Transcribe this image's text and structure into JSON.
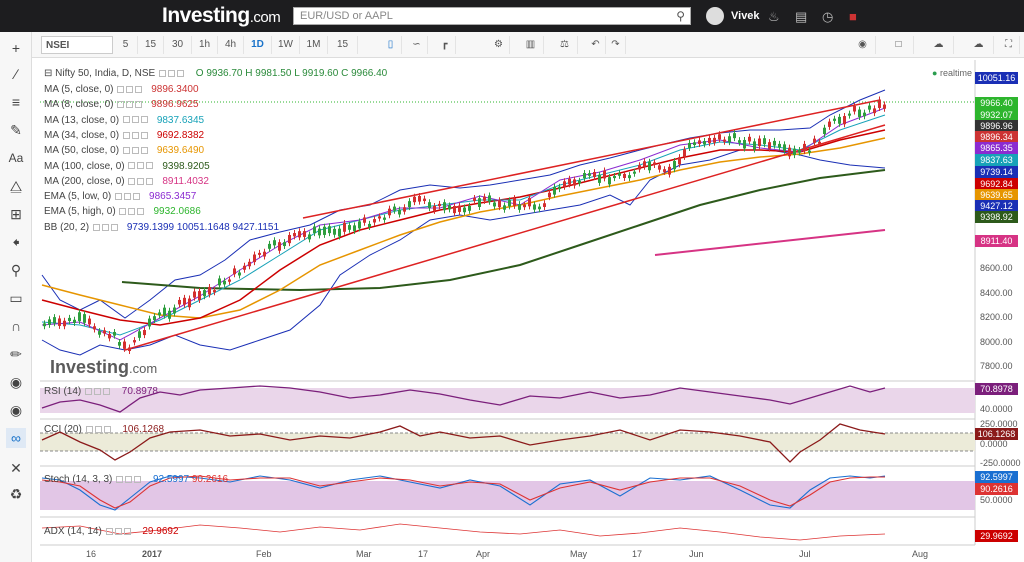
{
  "header": {
    "logo": "Investing",
    "logo_suffix": ".com",
    "search_placeholder": "EUR/USD or AAPL",
    "user_name": "Vivek"
  },
  "toolbar": {
    "symbol": "NSEI",
    "intervals": [
      "5",
      "15",
      "30",
      "1h",
      "4h",
      "1D",
      "1W",
      "1M",
      "15"
    ],
    "active_interval": "1D"
  },
  "legend": {
    "main": "Nifty 50, India, D, NSE",
    "ohlc": "O 9936.70  H 9981.50  L 9919.60  C 9966.40",
    "items": [
      {
        "label": "MA (5, close, 0)",
        "value": "9896.3400",
        "color": "#cc3333"
      },
      {
        "label": "MA (8, close, 0)",
        "value": "9896.9625",
        "color": "#cc3333"
      },
      {
        "label": "MA (13, close, 0)",
        "value": "9837.6345",
        "color": "#17a2b8"
      },
      {
        "label": "MA (34, close, 0)",
        "value": "9692.8382",
        "color": "#cc0000"
      },
      {
        "label": "MA (50, close, 0)",
        "value": "9639.6490",
        "color": "#e69500"
      },
      {
        "label": "MA (100, close, 0)",
        "value": "9398.9205",
        "color": "#2d5a1b"
      },
      {
        "label": "MA (200, close, 0)",
        "value": "8911.4032",
        "color": "#d63384"
      },
      {
        "label": "EMA (5, low, 0)",
        "value": "9865.3457",
        "color": "#8b2bd1"
      },
      {
        "label": "EMA (5, high, 0)",
        "value": "9932.0686",
        "color": "#2db52d"
      },
      {
        "label": "BB (20, 2)",
        "value": "9739.1399  10051.1648  9427.1151",
        "color": "#1a2fb5"
      }
    ],
    "realtime": "realtime"
  },
  "price_tags": [
    {
      "value": "10051.16",
      "color": "#1a2fb5"
    },
    {
      "value": "9966.40",
      "color": "#2db52d"
    },
    {
      "value": "9932.07",
      "color": "#2db52d"
    },
    {
      "value": "9896.96",
      "color": "#333333"
    },
    {
      "value": "9896.34",
      "color": "#cc3333"
    },
    {
      "value": "9865.35",
      "color": "#8b2bd1"
    },
    {
      "value": "9837.63",
      "color": "#17a2b8"
    },
    {
      "value": "9739.14",
      "color": "#1a2fb5"
    },
    {
      "value": "9692.84",
      "color": "#cc0000"
    },
    {
      "value": "9639.65",
      "color": "#e69500"
    },
    {
      "value": "9427.12",
      "color": "#1a2fb5"
    },
    {
      "value": "9398.92",
      "color": "#2d5a1b"
    },
    {
      "value": "8911.40",
      "color": "#d63384"
    }
  ],
  "price_axis": [
    "8600.00",
    "8400.00",
    "8200.00",
    "8000.00",
    "7800.00"
  ],
  "x_axis": [
    "16",
    "2017",
    "Feb",
    "Mar",
    "17",
    "Apr",
    "May",
    "17",
    "Jun",
    "Jul",
    "Aug"
  ],
  "indicators": {
    "rsi": {
      "label": "RSI (14)",
      "value": "70.8978",
      "ticks": [
        "40.0000"
      ],
      "tag": "70.8978",
      "color": "#7b1f7b"
    },
    "cci": {
      "label": "CCI (20)",
      "value": "106.1268",
      "ticks": [
        "250.0000",
        "0.0000",
        "-250.0000"
      ],
      "tag": "106.1268",
      "color": "#8b1a1a"
    },
    "stoch": {
      "label": "Stoch (14, 3, 3)",
      "value1": "92.5997",
      "value2": "90.2616",
      "ticks": [
        "50.0000"
      ],
      "tag1": "92.5997",
      "tag2": "90.2616"
    },
    "adx": {
      "label": "ADX (14, 14)",
      "value": "29.9692",
      "tag": "29.9692",
      "color": "#cc0000"
    }
  },
  "watermark": "Investing",
  "watermark_suffix": ".com"
}
